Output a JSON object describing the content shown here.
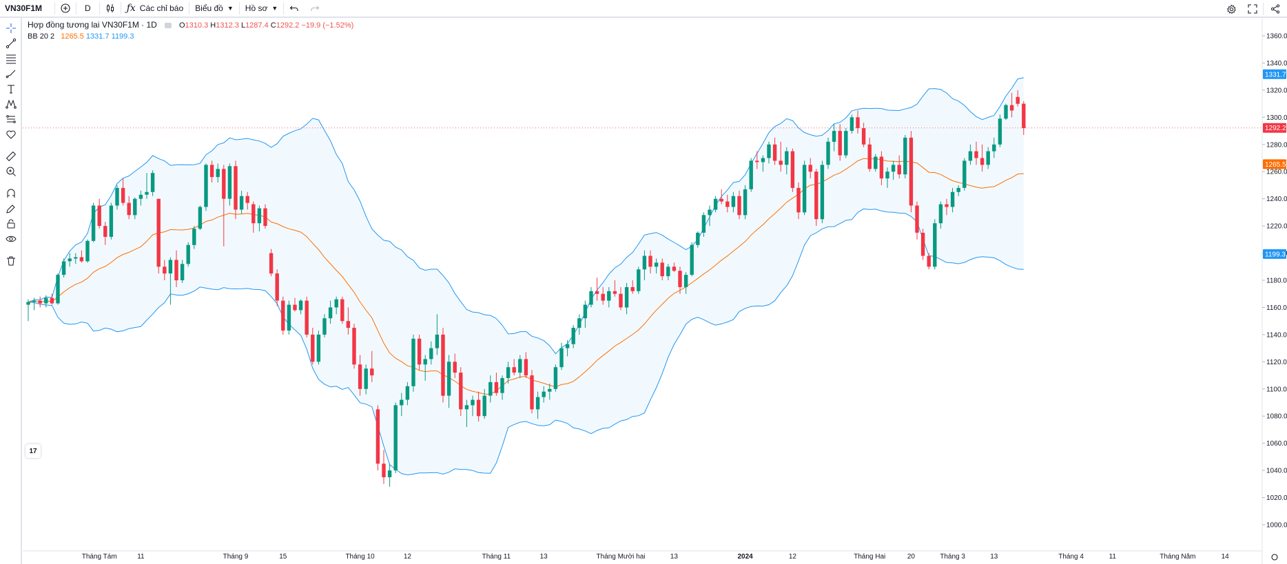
{
  "toolbar": {
    "symbol": "VN30F1M",
    "interval": "D",
    "indicators_label": "Các chỉ báo",
    "chart_label": "Biểu đồ",
    "profile_label": "Hồ sơ"
  },
  "legend": {
    "title": "Hợp đồng tương lai VN30F1M · 1D",
    "open_label": "O",
    "open": "1310.3",
    "high_label": "H",
    "high": "1312.3",
    "low_label": "L",
    "low": "1287.4",
    "close_label": "C",
    "close": "1292.2",
    "change": "−19.9 (−1.52%)",
    "bb_label": "BB 20 2",
    "bb_mid": "1265.5",
    "bb_upper": "1331.7",
    "bb_lower": "1199.3"
  },
  "logo_text": "17",
  "colors": {
    "up": "#089981",
    "down": "#f23645",
    "bb_basis": "#ff6d00",
    "bb_band": "#2196f3",
    "bb_fill": "#2196f30f"
  },
  "chart_data": {
    "type": "candlestick",
    "ylim": [
      1000,
      1360
    ],
    "y_ticks": [
      "1360.0",
      "1340.0",
      "1320.0",
      "1300.0",
      "1280.0",
      "1260.0",
      "1240.0",
      "1220.0",
      "1200.0",
      "1180.0",
      "1160.0",
      "1140.0",
      "1120.0",
      "1100.0",
      "1080.0",
      "1060.0",
      "1040.0",
      "1020.0",
      "1000.0"
    ],
    "x_labels": [
      {
        "label": "Tháng Tám",
        "bar": 12
      },
      {
        "label": "11",
        "bar": 19
      },
      {
        "label": "Tháng 9",
        "bar": 35
      },
      {
        "label": "15",
        "bar": 43
      },
      {
        "label": "Tháng 10",
        "bar": 56
      },
      {
        "label": "12",
        "bar": 64
      },
      {
        "label": "Tháng 11",
        "bar": 79
      },
      {
        "label": "13",
        "bar": 87
      },
      {
        "label": "Tháng Mười hai",
        "bar": 100
      },
      {
        "label": "13",
        "bar": 109
      },
      {
        "label": "2024",
        "bar": 121
      },
      {
        "label": "12",
        "bar": 129
      },
      {
        "label": "Tháng Hai",
        "bar": 142
      },
      {
        "label": "20",
        "bar": 149
      },
      {
        "label": "Tháng 3",
        "bar": 156
      },
      {
        "label": "13",
        "bar": 163
      },
      {
        "label": "Tháng 4",
        "bar": 176
      },
      {
        "label": "11",
        "bar": 183
      },
      {
        "label": "Tháng Năm",
        "bar": 194
      },
      {
        "label": "14",
        "bar": 202
      }
    ],
    "ohlc": [
      [
        1162,
        1166,
        1150,
        1164
      ],
      [
        1164,
        1167,
        1158,
        1165
      ],
      [
        1165,
        1168,
        1160,
        1163
      ],
      [
        1163,
        1169,
        1160,
        1167
      ],
      [
        1167,
        1170,
        1162,
        1163
      ],
      [
        1163,
        1185,
        1162,
        1184
      ],
      [
        1184,
        1196,
        1182,
        1194
      ],
      [
        1194,
        1200,
        1190,
        1196
      ],
      [
        1196,
        1200,
        1192,
        1197
      ],
      [
        1197,
        1202,
        1193,
        1194
      ],
      [
        1194,
        1210,
        1193,
        1209
      ],
      [
        1209,
        1237,
        1208,
        1235
      ],
      [
        1235,
        1240,
        1218,
        1220
      ],
      [
        1220,
        1223,
        1206,
        1212
      ],
      [
        1212,
        1237,
        1210,
        1235
      ],
      [
        1235,
        1250,
        1232,
        1248
      ],
      [
        1248,
        1255,
        1235,
        1237
      ],
      [
        1237,
        1242,
        1225,
        1228
      ],
      [
        1228,
        1241,
        1225,
        1240
      ],
      [
        1240,
        1246,
        1235,
        1243
      ],
      [
        1243,
        1259,
        1240,
        1245
      ],
      [
        1245,
        1261,
        1242,
        1259
      ],
      [
        1240,
        1240,
        1185,
        1190
      ],
      [
        1190,
        1195,
        1180,
        1185
      ],
      [
        1185,
        1197,
        1162,
        1195
      ],
      [
        1195,
        1202,
        1175,
        1180
      ],
      [
        1180,
        1195,
        1178,
        1192
      ],
      [
        1192,
        1208,
        1190,
        1206
      ],
      [
        1206,
        1220,
        1203,
        1218
      ],
      [
        1218,
        1235,
        1217,
        1234
      ],
      [
        1234,
        1266,
        1231,
        1265
      ],
      [
        1265,
        1268,
        1252,
        1256
      ],
      [
        1256,
        1266,
        1252,
        1262
      ],
      [
        1262,
        1265,
        1205,
        1240
      ],
      [
        1240,
        1266,
        1235,
        1264
      ],
      [
        1264,
        1268,
        1225,
        1232
      ],
      [
        1232,
        1246,
        1229,
        1242
      ],
      [
        1242,
        1245,
        1232,
        1237
      ],
      [
        1236,
        1238,
        1215,
        1222
      ],
      [
        1222,
        1235,
        1216,
        1233
      ],
      [
        1233,
        1236,
        1218,
        1220
      ],
      [
        1200,
        1203,
        1183,
        1185
      ],
      [
        1185,
        1188,
        1161,
        1165
      ],
      [
        1165,
        1168,
        1140,
        1143
      ],
      [
        1143,
        1165,
        1140,
        1162
      ],
      [
        1162,
        1167,
        1157,
        1158
      ],
      [
        1158,
        1166,
        1155,
        1165
      ],
      [
        1165,
        1168,
        1138,
        1140
      ],
      [
        1140,
        1145,
        1118,
        1120
      ],
      [
        1120,
        1143,
        1118,
        1140
      ],
      [
        1140,
        1155,
        1138,
        1152
      ],
      [
        1152,
        1165,
        1148,
        1160
      ],
      [
        1160,
        1168,
        1155,
        1166
      ],
      [
        1166,
        1168,
        1148,
        1150
      ],
      [
        1150,
        1160,
        1140,
        1145
      ],
      [
        1145,
        1148,
        1115,
        1118
      ],
      [
        1118,
        1125,
        1095,
        1100
      ],
      [
        1100,
        1118,
        1096,
        1115
      ],
      [
        1115,
        1128,
        1105,
        1110
      ],
      [
        1085,
        1088,
        1040,
        1045
      ],
      [
        1045,
        1055,
        1030,
        1035
      ],
      [
        1035,
        1045,
        1028,
        1040
      ],
      [
        1040,
        1090,
        1038,
        1088
      ],
      [
        1088,
        1097,
        1080,
        1092
      ],
      [
        1092,
        1105,
        1088,
        1102
      ],
      [
        1102,
        1140,
        1098,
        1137
      ],
      [
        1137,
        1140,
        1114,
        1118
      ],
      [
        1118,
        1125,
        1106,
        1122
      ],
      [
        1122,
        1135,
        1118,
        1130
      ],
      [
        1130,
        1155,
        1125,
        1140
      ],
      [
        1140,
        1145,
        1090,
        1095
      ],
      [
        1095,
        1125,
        1086,
        1120
      ],
      [
        1120,
        1126,
        1108,
        1112
      ],
      [
        1112,
        1116,
        1080,
        1085
      ],
      [
        1085,
        1092,
        1072,
        1088
      ],
      [
        1088,
        1095,
        1080,
        1092
      ],
      [
        1092,
        1098,
        1076,
        1080
      ],
      [
        1080,
        1100,
        1078,
        1095
      ],
      [
        1095,
        1110,
        1090,
        1105
      ],
      [
        1105,
        1112,
        1095,
        1097
      ],
      [
        1097,
        1110,
        1092,
        1108
      ],
      [
        1108,
        1120,
        1104,
        1116
      ],
      [
        1116,
        1122,
        1110,
        1112
      ],
      [
        1112,
        1125,
        1108,
        1122
      ],
      [
        1122,
        1127,
        1108,
        1110
      ],
      [
        1110,
        1114,
        1082,
        1085
      ],
      [
        1085,
        1098,
        1078,
        1094
      ],
      [
        1094,
        1102,
        1090,
        1098
      ],
      [
        1098,
        1104,
        1092,
        1100
      ],
      [
        1100,
        1118,
        1098,
        1116
      ],
      [
        1116,
        1134,
        1114,
        1130
      ],
      [
        1130,
        1136,
        1124,
        1133
      ],
      [
        1133,
        1147,
        1130,
        1145
      ],
      [
        1145,
        1155,
        1140,
        1152
      ],
      [
        1152,
        1165,
        1145,
        1162
      ],
      [
        1162,
        1175,
        1160,
        1172
      ],
      [
        1172,
        1182,
        1165,
        1170
      ],
      [
        1170,
        1175,
        1162,
        1165
      ],
      [
        1165,
        1175,
        1160,
        1172
      ],
      [
        1172,
        1180,
        1168,
        1170
      ],
      [
        1170,
        1175,
        1158,
        1160
      ],
      [
        1160,
        1178,
        1155,
        1175
      ],
      [
        1175,
        1180,
        1170,
        1172
      ],
      [
        1172,
        1190,
        1170,
        1188
      ],
      [
        1188,
        1202,
        1180,
        1198
      ],
      [
        1198,
        1202,
        1185,
        1190
      ],
      [
        1190,
        1196,
        1185,
        1193
      ],
      [
        1193,
        1196,
        1180,
        1183
      ],
      [
        1183,
        1192,
        1180,
        1190
      ],
      [
        1190,
        1193,
        1186,
        1187
      ],
      [
        1187,
        1190,
        1170,
        1175
      ],
      [
        1175,
        1186,
        1170,
        1184
      ],
      [
        1184,
        1208,
        1183,
        1206
      ],
      [
        1206,
        1216,
        1204,
        1215
      ],
      [
        1215,
        1230,
        1212,
        1228
      ],
      [
        1228,
        1235,
        1220,
        1232
      ],
      [
        1232,
        1242,
        1230,
        1240
      ],
      [
        1240,
        1247,
        1236,
        1238
      ],
      [
        1238,
        1243,
        1230,
        1234
      ],
      [
        1234,
        1245,
        1230,
        1242
      ],
      [
        1242,
        1246,
        1225,
        1228
      ],
      [
        1228,
        1250,
        1225,
        1247
      ],
      [
        1247,
        1270,
        1245,
        1268
      ],
      [
        1268,
        1275,
        1262,
        1267
      ],
      [
        1267,
        1272,
        1260,
        1270
      ],
      [
        1270,
        1282,
        1266,
        1280
      ],
      [
        1280,
        1285,
        1265,
        1268
      ],
      [
        1268,
        1282,
        1260,
        1265
      ],
      [
        1265,
        1278,
        1258,
        1275
      ],
      [
        1275,
        1277,
        1245,
        1248
      ],
      [
        1248,
        1252,
        1225,
        1230
      ],
      [
        1230,
        1268,
        1228,
        1265
      ],
      [
        1265,
        1270,
        1255,
        1260
      ],
      [
        1260,
        1262,
        1220,
        1225
      ],
      [
        1225,
        1268,
        1222,
        1265
      ],
      [
        1265,
        1285,
        1262,
        1282
      ],
      [
        1282,
        1295,
        1275,
        1290
      ],
      [
        1290,
        1295,
        1268,
        1272
      ],
      [
        1272,
        1292,
        1270,
        1290
      ],
      [
        1290,
        1302,
        1288,
        1300
      ],
      [
        1300,
        1305,
        1288,
        1292
      ],
      [
        1292,
        1296,
        1278,
        1280
      ],
      [
        1280,
        1285,
        1260,
        1262
      ],
      [
        1262,
        1273,
        1260,
        1271
      ],
      [
        1271,
        1275,
        1250,
        1255
      ],
      [
        1255,
        1263,
        1248,
        1260
      ],
      [
        1260,
        1268,
        1254,
        1265
      ],
      [
        1265,
        1272,
        1255,
        1258
      ],
      [
        1258,
        1287,
        1255,
        1285
      ],
      [
        1285,
        1290,
        1230,
        1235
      ],
      [
        1235,
        1238,
        1210,
        1215
      ],
      [
        1215,
        1218,
        1195,
        1198
      ],
      [
        1198,
        1200,
        1188,
        1190
      ],
      [
        1190,
        1225,
        1188,
        1222
      ],
      [
        1222,
        1238,
        1218,
        1236
      ],
      [
        1236,
        1240,
        1228,
        1234
      ],
      [
        1234,
        1248,
        1230,
        1245
      ],
      [
        1245,
        1250,
        1242,
        1248
      ],
      [
        1248,
        1270,
        1246,
        1268
      ],
      [
        1268,
        1280,
        1265,
        1275
      ],
      [
        1275,
        1282,
        1265,
        1270
      ],
      [
        1270,
        1280,
        1260,
        1265
      ],
      [
        1265,
        1278,
        1262,
        1275
      ],
      [
        1275,
        1285,
        1270,
        1280
      ],
      [
        1280,
        1302,
        1278,
        1299
      ],
      [
        1299,
        1310,
        1298,
        1309
      ],
      [
        1309,
        1318,
        1300,
        1305
      ],
      [
        1315,
        1320,
        1308,
        1310
      ],
      [
        1310,
        1312,
        1287,
        1292
      ]
    ],
    "bb_period": 20,
    "bb_mult": 2,
    "last_close": 1292.2
  }
}
